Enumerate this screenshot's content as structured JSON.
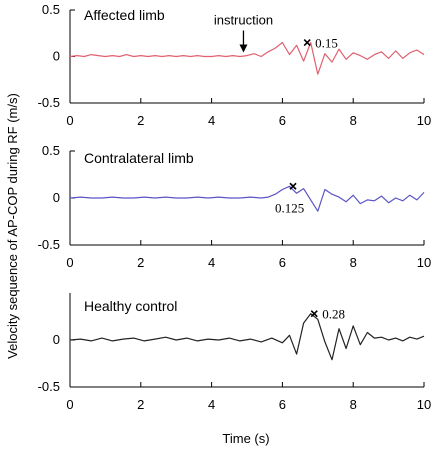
{
  "figure": {
    "ylabel": "Velocity sequence  of AP-COP during RF (m/s)",
    "xlabel": "Time (s)"
  },
  "chart_data": [
    {
      "type": "line",
      "title": "Affected limb",
      "xlim": [
        0,
        10
      ],
      "ylim": [
        -0.5,
        0.5
      ],
      "x_ticks": [
        "0",
        "2",
        "4",
        "6",
        "8",
        "10"
      ],
      "y_ticks": [
        "0.5",
        "0",
        "-0.5"
      ],
      "series": [
        {
          "color": "#e0606e",
          "x": [
            0,
            0.2,
            0.4,
            0.6,
            0.8,
            1.0,
            1.2,
            1.4,
            1.6,
            1.8,
            2.0,
            2.2,
            2.4,
            2.6,
            2.8,
            3.0,
            3.2,
            3.4,
            3.6,
            3.8,
            4.0,
            4.2,
            4.4,
            4.6,
            4.8,
            5.0,
            5.2,
            5.4,
            5.6,
            5.8,
            6.0,
            6.2,
            6.4,
            6.6,
            6.8,
            7.0,
            7.2,
            7.4,
            7.6,
            7.8,
            8.0,
            8.2,
            8.4,
            8.6,
            8.8,
            9.0,
            9.2,
            9.4,
            9.6,
            9.8,
            10.0
          ],
          "y": [
            0.0,
            0.01,
            0.0,
            0.02,
            0.01,
            0.0,
            0.01,
            0.0,
            0.02,
            0.0,
            0.01,
            0.0,
            0.01,
            0.0,
            0.01,
            0.0,
            0.01,
            0.0,
            0.01,
            0.0,
            0.0,
            0.01,
            0.0,
            0.01,
            0.0,
            0.01,
            0.03,
            0.0,
            0.05,
            0.09,
            0.15,
            0.02,
            0.12,
            -0.05,
            0.15,
            -0.19,
            0.03,
            -0.06,
            0.08,
            -0.03,
            0.04,
            0.01,
            -0.03,
            0.02,
            0.05,
            -0.02,
            0.06,
            -0.02,
            0.04,
            0.07,
            0.02
          ]
        }
      ],
      "annotations": [
        {
          "type": "arrow-label",
          "text": "instruction",
          "x": 4.9,
          "y": 0.0
        },
        {
          "type": "marker",
          "symbol": "x",
          "x": 6.7,
          "y": 0.15,
          "text": "0.15"
        }
      ]
    },
    {
      "type": "line",
      "title": "Contralateral limb",
      "xlim": [
        0,
        10
      ],
      "ylim": [
        -0.5,
        0.5
      ],
      "x_ticks": [
        "0",
        "2",
        "4",
        "6",
        "8",
        "10"
      ],
      "y_ticks": [
        "0.5",
        "0",
        "-0.5"
      ],
      "series": [
        {
          "color": "#5b54c7",
          "x": [
            0,
            0.3,
            0.6,
            0.9,
            1.2,
            1.5,
            1.8,
            2.1,
            2.4,
            2.7,
            3.0,
            3.3,
            3.6,
            3.9,
            4.2,
            4.5,
            4.8,
            5.1,
            5.4,
            5.6,
            5.8,
            6.0,
            6.2,
            6.4,
            6.6,
            6.8,
            7.0,
            7.2,
            7.4,
            7.6,
            7.8,
            8.0,
            8.2,
            8.4,
            8.6,
            8.8,
            9.0,
            9.2,
            9.4,
            9.6,
            9.8,
            10.0
          ],
          "y": [
            0.0,
            0.01,
            0.0,
            0.0,
            0.01,
            0.0,
            0.0,
            0.01,
            0.0,
            0.01,
            0.0,
            0.0,
            0.01,
            0.0,
            0.01,
            0.0,
            0.0,
            0.01,
            0.0,
            0.01,
            0.04,
            0.09,
            0.125,
            0.05,
            0.1,
            -0.02,
            -0.14,
            0.09,
            0.04,
            0.01,
            -0.04,
            0.03,
            -0.06,
            -0.02,
            -0.03,
            0.02,
            -0.05,
            0.0,
            -0.03,
            0.03,
            -0.02,
            0.06
          ]
        }
      ],
      "annotations": [
        {
          "type": "marker",
          "symbol": "x",
          "x": 6.3,
          "y": 0.125,
          "text": "0.125"
        }
      ]
    },
    {
      "type": "line",
      "title": "Healthy control",
      "xlim": [
        0,
        10
      ],
      "ylim": [
        -0.5,
        0.5
      ],
      "x_ticks": [
        "0",
        "2",
        "4",
        "6",
        "8",
        "10"
      ],
      "y_ticks": [
        "0",
        "-0.5"
      ],
      "series": [
        {
          "color": "#222222",
          "x": [
            0,
            0.3,
            0.6,
            0.9,
            1.2,
            1.5,
            1.8,
            2.1,
            2.4,
            2.7,
            3.0,
            3.3,
            3.6,
            3.9,
            4.2,
            4.5,
            4.8,
            5.1,
            5.4,
            5.7,
            6.0,
            6.2,
            6.4,
            6.6,
            6.8,
            7.0,
            7.2,
            7.4,
            7.6,
            7.8,
            8.0,
            8.2,
            8.4,
            8.6,
            8.8,
            9.0,
            9.2,
            9.4,
            9.6,
            9.8,
            10.0
          ],
          "y": [
            0.0,
            0.01,
            -0.01,
            0.02,
            -0.01,
            0.01,
            0.02,
            -0.01,
            0.01,
            0.03,
            0.0,
            0.02,
            -0.01,
            0.01,
            0.0,
            0.02,
            -0.01,
            0.01,
            -0.02,
            0.02,
            -0.03,
            0.05,
            -0.15,
            0.18,
            0.28,
            0.22,
            -0.02,
            -0.21,
            0.12,
            -0.09,
            0.15,
            -0.05,
            0.08,
            0.02,
            0.03,
            0.0,
            0.02,
            -0.01,
            0.03,
            0.01,
            0.04
          ]
        }
      ],
      "annotations": [
        {
          "type": "marker",
          "symbol": "x",
          "x": 6.9,
          "y": 0.28,
          "text": "0.28"
        }
      ]
    }
  ]
}
